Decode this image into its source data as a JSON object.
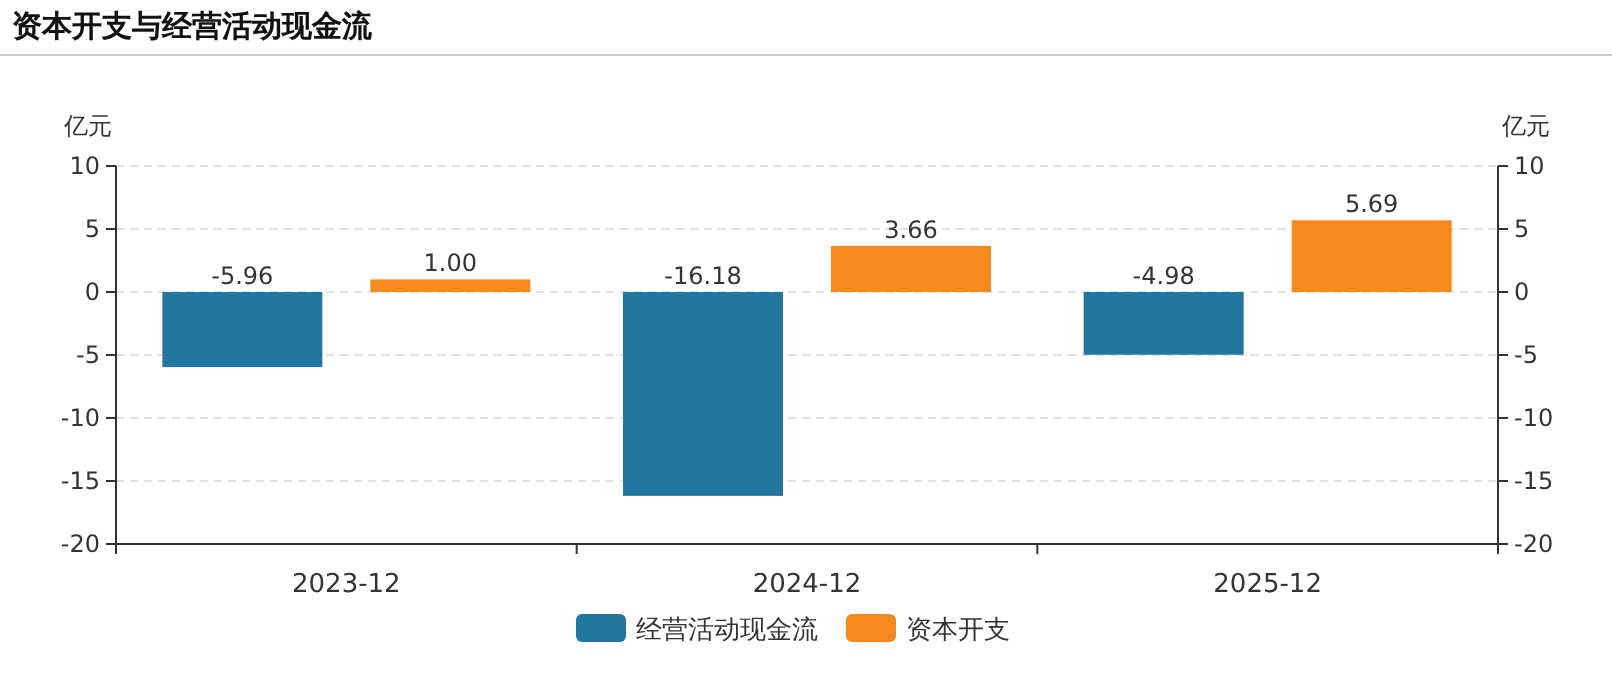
{
  "chart_data": {
    "type": "bar",
    "title": "资本开支与经营活动现金流",
    "ylabel": "亿元",
    "y2label": "亿元",
    "categories": [
      "2023-12",
      "2024-12",
      "2025-12"
    ],
    "series": [
      {
        "name": "经营活动现金流",
        "color": "#23769f",
        "values": [
          -5.96,
          -16.18,
          -4.98
        ],
        "value_labels": [
          "-5.96",
          "-16.18",
          "-4.98"
        ]
      },
      {
        "name": "资本开支",
        "color": "#f5891e",
        "values": [
          1.0,
          3.66,
          5.69
        ],
        "value_labels": [
          "1.00",
          "3.66",
          "5.69"
        ]
      }
    ],
    "grid": "y",
    "legend": "bottom",
    "ylim": [
      -20,
      10
    ],
    "yticks": [
      -20,
      -15,
      -10,
      -5,
      0,
      5,
      10
    ],
    "y2lim": [
      -20,
      10
    ],
    "y2ticks": [
      -20,
      -15,
      -10,
      -5,
      0,
      5,
      10
    ]
  }
}
